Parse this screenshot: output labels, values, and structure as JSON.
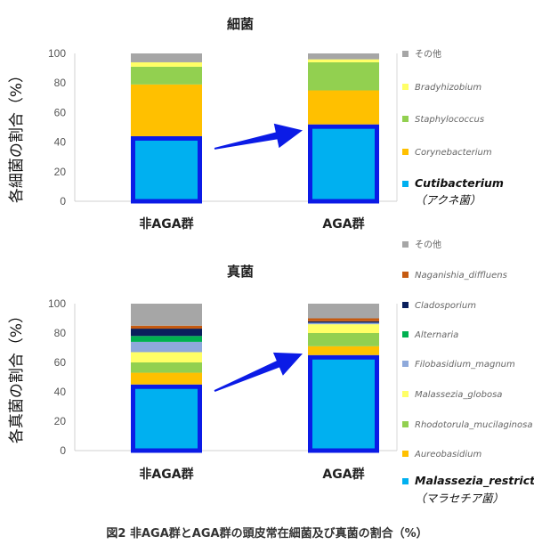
{
  "figure_caption": "図2 非AGA群とAGA群の頭皮常在細菌及び真菌の割合（%）",
  "chart_data": [
    {
      "type": "bar",
      "stacked": true,
      "title": "細菌",
      "ylabel": "各細菌の割合（%）",
      "xlabel": "",
      "ylim": [
        0,
        100
      ],
      "yticks": [
        0,
        20,
        40,
        60,
        80,
        100
      ],
      "grid": false,
      "legend_position": "right",
      "categories": [
        "非AGA群",
        "AGA群"
      ],
      "series": [
        {
          "name": "Cutibacterium",
          "sub_label": "（アクネ菌）",
          "values": [
            44,
            52
          ],
          "color": "#00b0f0",
          "highlight": true
        },
        {
          "name": "Corynebacterium",
          "values": [
            35,
            23
          ],
          "color": "#ffc000"
        },
        {
          "name": "Staphylococcus",
          "values": [
            12,
            19
          ],
          "color": "#92d050"
        },
        {
          "name": "Bradyhizobium",
          "values": [
            3,
            2
          ],
          "color": "#ffff66"
        },
        {
          "name": "その他",
          "values": [
            6,
            4
          ],
          "color": "#a6a6a6"
        }
      ],
      "annotation": {
        "type": "arrow",
        "color": "#0b1be6",
        "from_category": 0,
        "to_category": 1,
        "from_value": 38,
        "to_value": 48
      }
    },
    {
      "type": "bar",
      "stacked": true,
      "title": "真菌",
      "ylabel": "各真菌の割合（%）",
      "xlabel": "",
      "ylim": [
        0,
        100
      ],
      "yticks": [
        0,
        20,
        40,
        60,
        80,
        100
      ],
      "grid": false,
      "legend_position": "right",
      "categories": [
        "非AGA群",
        "AGA群"
      ],
      "series": [
        {
          "name": "Malassezia_restricta",
          "sub_label": "（マラセチア菌）",
          "values": [
            45,
            65
          ],
          "color": "#00b0f0",
          "highlight": true
        },
        {
          "name": "Aureobasidium",
          "values": [
            8,
            6
          ],
          "color": "#ffc000"
        },
        {
          "name": "Rhodotorula_mucilaginosa",
          "values": [
            7,
            9
          ],
          "color": "#92d050"
        },
        {
          "name": "Malassezia_globosa",
          "values": [
            7,
            6
          ],
          "color": "#ffff66"
        },
        {
          "name": "Filobasidium_magnum",
          "values": [
            7,
            1
          ],
          "color": "#8ea9db"
        },
        {
          "name": "Alternaria",
          "values": [
            4,
            0
          ],
          "color": "#00b050"
        },
        {
          "name": "Cladosporium",
          "values": [
            5,
            1
          ],
          "color": "#0a1f5c"
        },
        {
          "name": "Naganishia_diffluens",
          "values": [
            2,
            2
          ],
          "color": "#c55a11"
        },
        {
          "name": "その他",
          "values": [
            15,
            10
          ],
          "color": "#a6a6a6"
        }
      ],
      "annotation": {
        "type": "arrow",
        "color": "#0b1be6",
        "from_category": 0,
        "to_category": 1,
        "from_value": 43,
        "to_value": 66
      }
    }
  ]
}
